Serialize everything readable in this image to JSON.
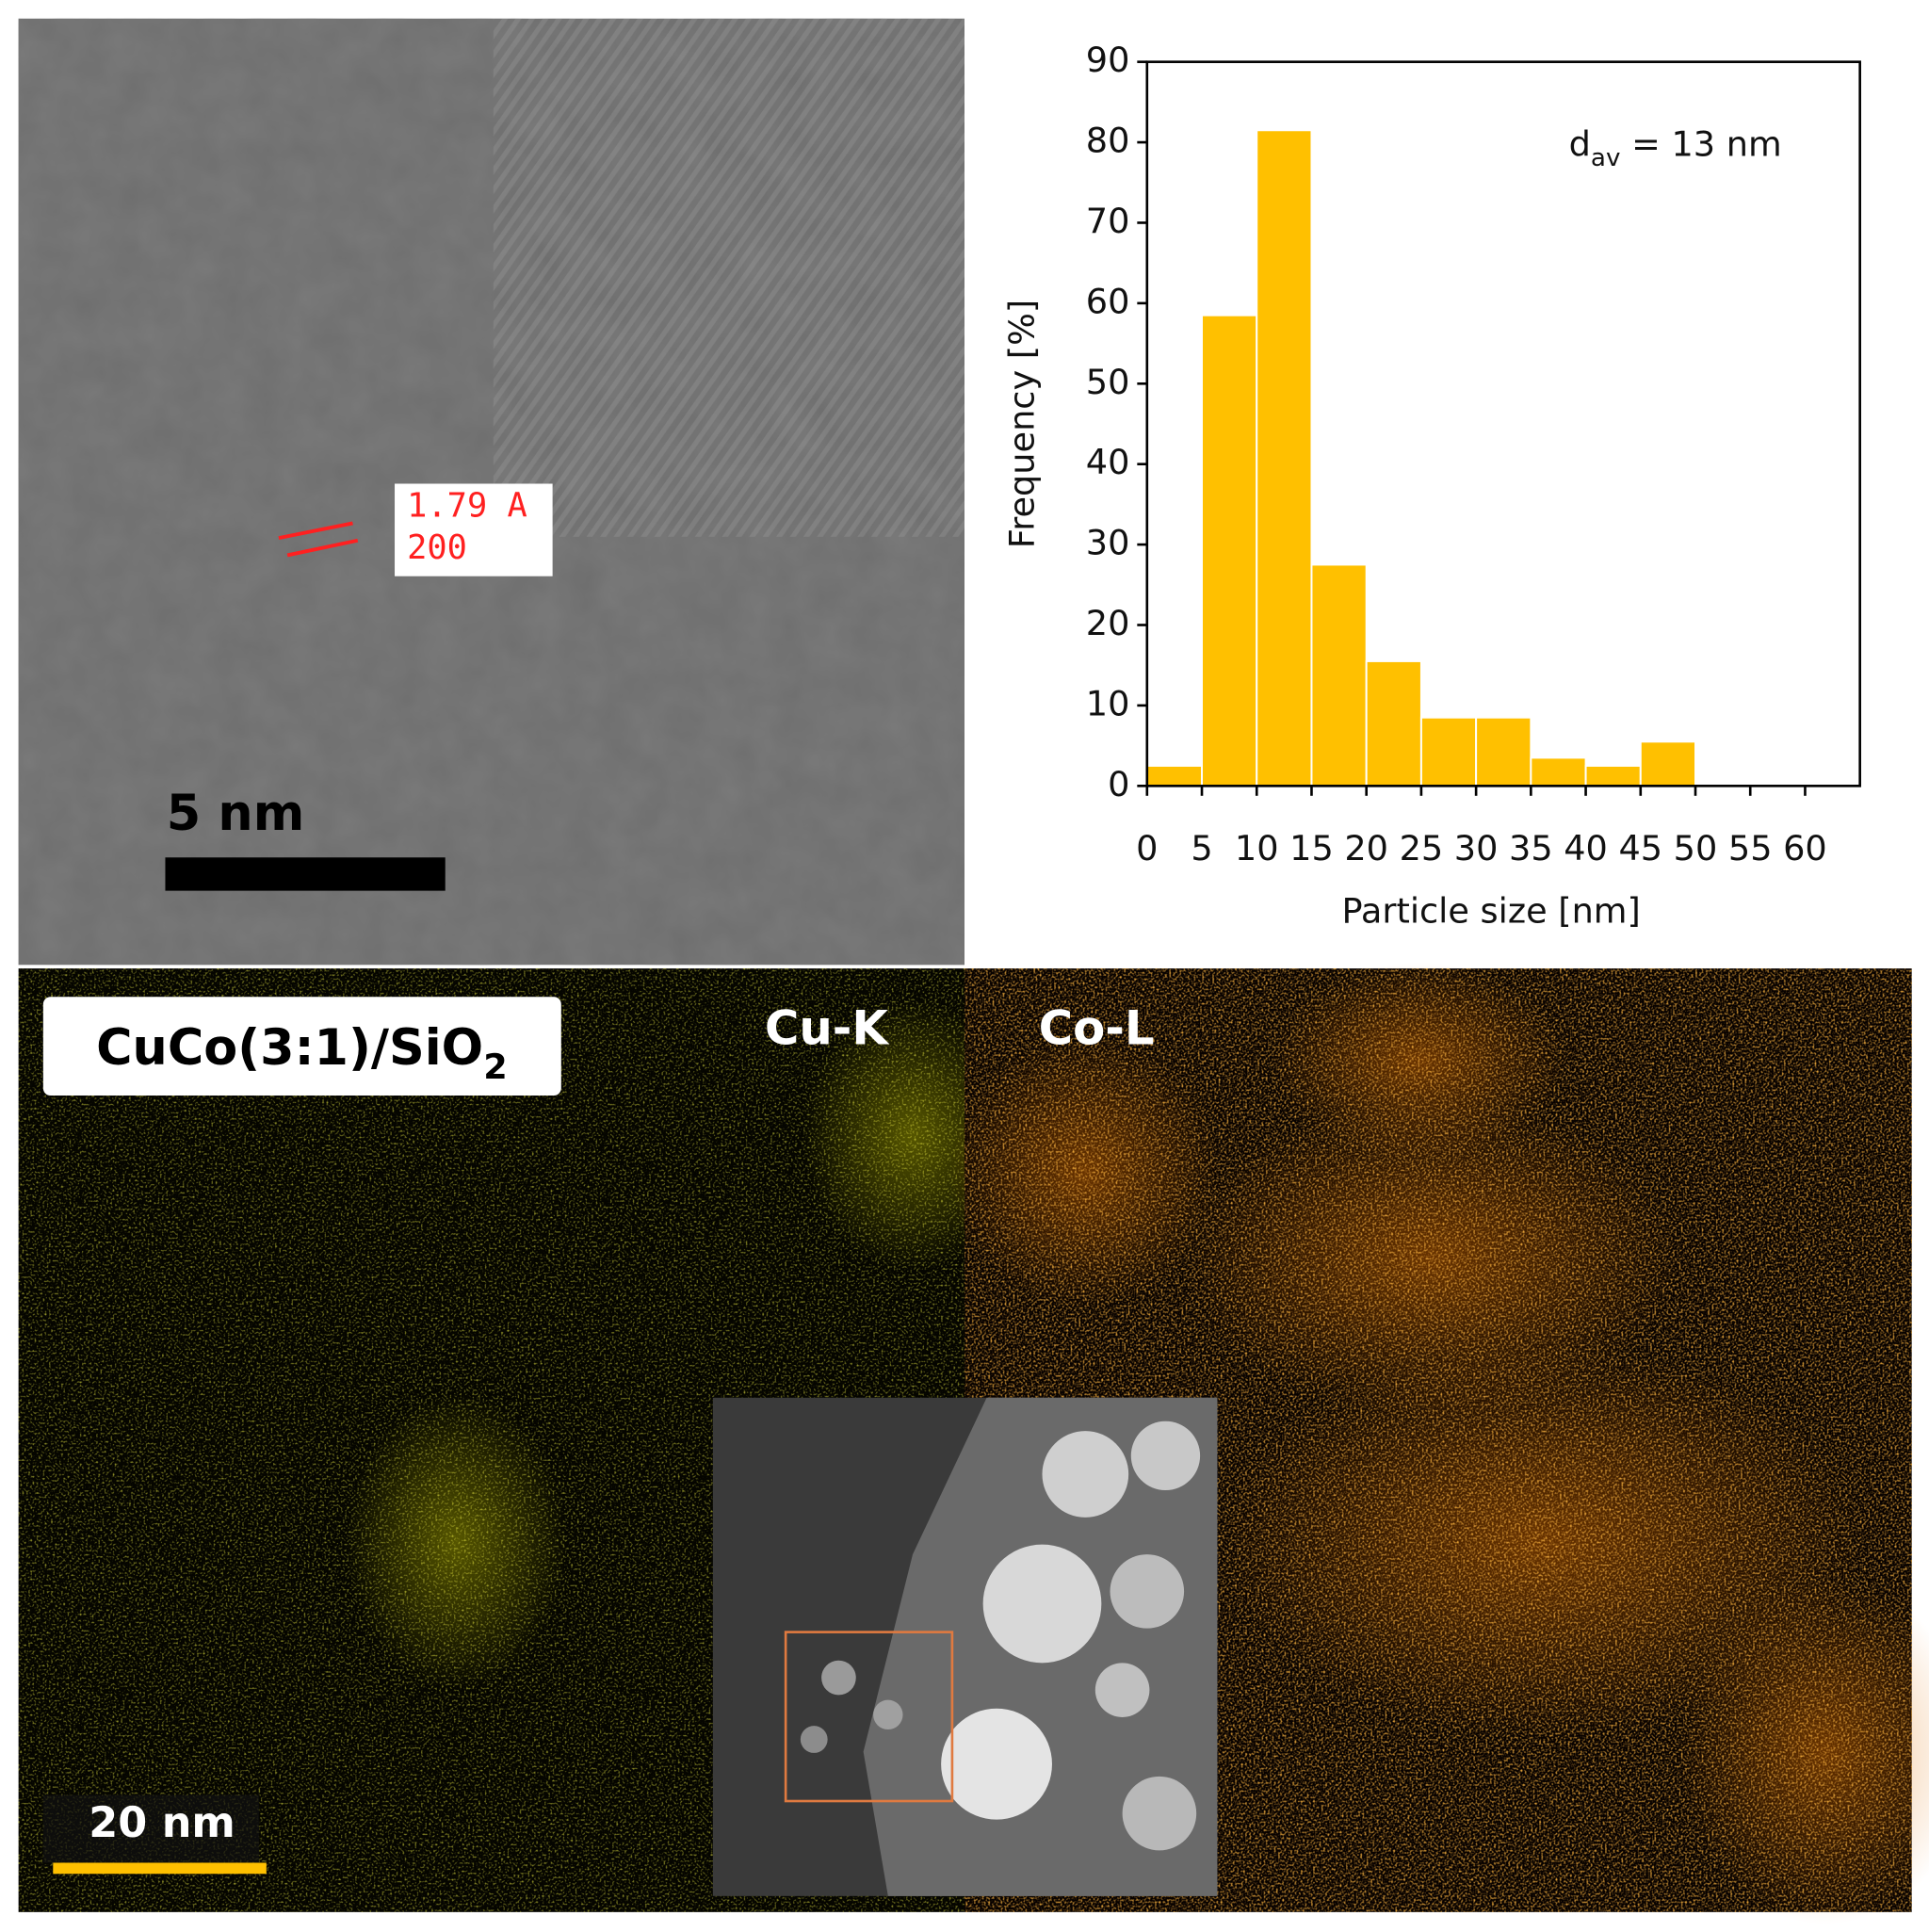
{
  "chart_data": {
    "type": "histogram",
    "xlabel": "Particle size [nm]",
    "ylabel": "Frequency [%]",
    "annotation": {
      "main": "d",
      "sub": "av",
      "rest": " = 13 nm"
    },
    "bins": [
      0,
      5,
      10,
      15,
      20,
      25,
      30,
      35,
      40,
      45,
      50,
      55,
      60,
      65
    ],
    "values": [
      2.5,
      58.5,
      81.5,
      27.5,
      15.5,
      8.5,
      8.5,
      3.5,
      2.5,
      5.5,
      0,
      0,
      0
    ],
    "color": "#ffc000",
    "xlim": [
      0,
      65
    ],
    "xticks": [
      0,
      5,
      10,
      15,
      20,
      25,
      30,
      35,
      40,
      45,
      50,
      55,
      60
    ],
    "ylim": [
      0,
      90
    ],
    "yticks": [
      0,
      10,
      20,
      30,
      40,
      50,
      60,
      70,
      80,
      90
    ]
  },
  "tem_image": {
    "lattice_spacing": "1.79 A",
    "plane": "200",
    "scale_bar": "5 nm"
  },
  "eds_map": {
    "sample_main": "CuCo(3:1)/SiO",
    "sample_sub": "2",
    "map1": "Cu-K",
    "map2": "Co-L",
    "scale_bar": "20 nm"
  }
}
